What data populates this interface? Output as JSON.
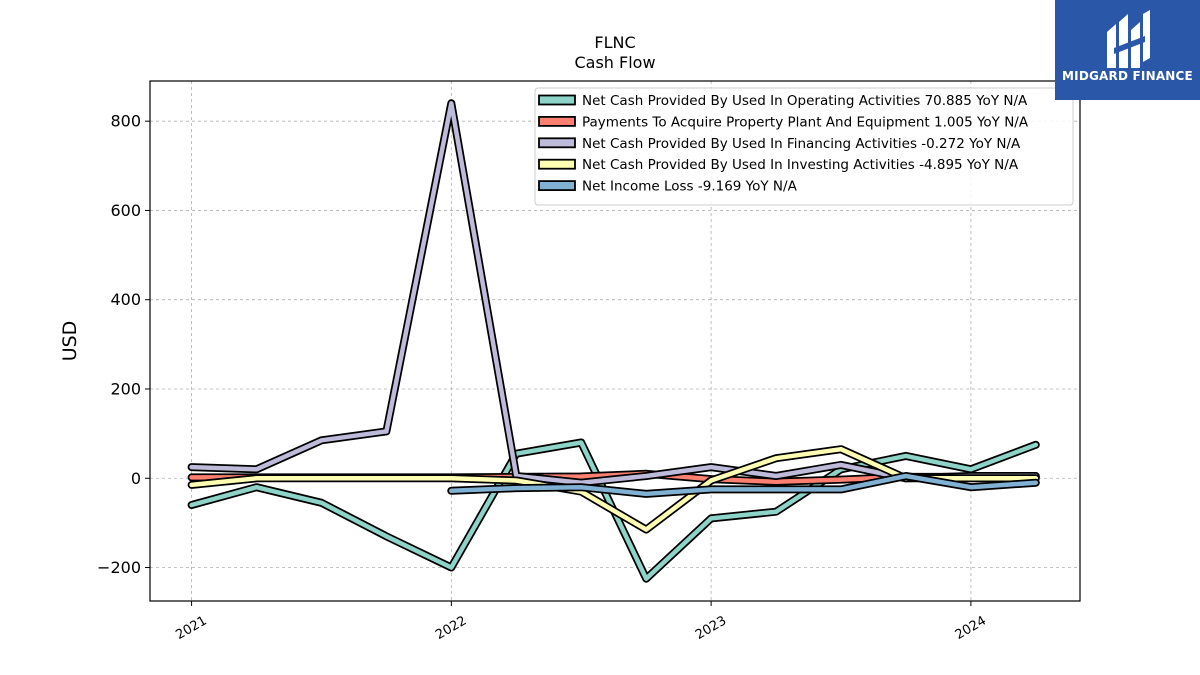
{
  "logo": {
    "brand_text": "MIDGARD FINANCE",
    "icon": "midgard-logo-icon",
    "background": "#2b57a8"
  },
  "chart_data": {
    "type": "line",
    "title": "FLNC",
    "subtitle": "Cash Flow",
    "xlabel": "",
    "ylabel": "USD",
    "x_ticks": [
      {
        "x": 2021,
        "label": "2021"
      },
      {
        "x": 2022,
        "label": "2022"
      },
      {
        "x": 2023,
        "label": "2023"
      },
      {
        "x": 2024,
        "label": "2024"
      }
    ],
    "y_ticks": [
      {
        "y": -200,
        "label": "−200"
      },
      {
        "y": 0,
        "label": "0"
      },
      {
        "y": 200,
        "label": "200"
      },
      {
        "y": 400,
        "label": "400"
      },
      {
        "y": 600,
        "label": "600"
      },
      {
        "y": 800,
        "label": "800"
      }
    ],
    "xlim": [
      2020.84,
      2024.42
    ],
    "ylim": [
      -275,
      890
    ],
    "grid": true,
    "legend_position": "top-right",
    "series": [
      {
        "name": "Net Cash Provided By Used In Operating Activities  70.885 YoY N/A",
        "color": "#8dd3c7",
        "x": [
          2021.0,
          2021.25,
          2021.5,
          2021.75,
          2022.0,
          2022.25,
          2022.5,
          2022.75,
          2023.0,
          2023.25,
          2023.5,
          2023.75,
          2024.0,
          2024.25
        ],
        "y": [
          -60,
          -20,
          -55,
          -130,
          -200,
          55,
          80,
          -225,
          -90,
          -75,
          20,
          50,
          20,
          75
        ]
      },
      {
        "name": "Payments To Acquire Property Plant And Equipment  1.005 YoY N/A",
        "color": "#fb8072",
        "x": [
          2021.0,
          2021.25,
          2021.5,
          2021.75,
          2022.0,
          2022.25,
          2022.5,
          2022.75,
          2023.0,
          2023.25,
          2023.5,
          2023.75,
          2024.0,
          2024.25
        ],
        "y": [
          2,
          2,
          2,
          2,
          2,
          3,
          4,
          10,
          -2,
          -8,
          -3,
          3,
          3,
          3
        ]
      },
      {
        "name": "Net Cash Provided By Used In Financing Activities  -0.272 YoY N/A",
        "color": "#bebada",
        "x": [
          2021.0,
          2021.25,
          2021.5,
          2021.75,
          2022.0,
          2022.25,
          2022.5,
          2022.75,
          2023.0,
          2023.25,
          2023.5,
          2023.75,
          2024.0,
          2024.25
        ],
        "y": [
          25,
          20,
          85,
          105,
          840,
          5,
          -10,
          5,
          25,
          5,
          30,
          0,
          5,
          5
        ]
      },
      {
        "name": "Net Cash Provided By Used In Investing Activities  -4.895 YoY N/A",
        "color": "#ffffb3",
        "x": [
          2021.0,
          2021.25,
          2021.5,
          2021.75,
          2022.0,
          2022.25,
          2022.5,
          2022.75,
          2023.0,
          2023.25,
          2023.5,
          2023.75,
          2024.0,
          2024.25
        ],
        "y": [
          -15,
          0,
          0,
          0,
          0,
          -5,
          -30,
          -115,
          -5,
          45,
          65,
          0,
          0,
          0
        ]
      },
      {
        "name": "Net Income Loss  -9.169 YoY N/A",
        "color": "#80b1d3",
        "x": [
          2022.0,
          2022.25,
          2022.5,
          2022.75,
          2023.0,
          2023.25,
          2023.5,
          2023.75,
          2024.0,
          2024.25
        ],
        "y": [
          -28,
          -22,
          -20,
          -35,
          -25,
          -25,
          -25,
          5,
          -20,
          -10
        ]
      }
    ]
  }
}
